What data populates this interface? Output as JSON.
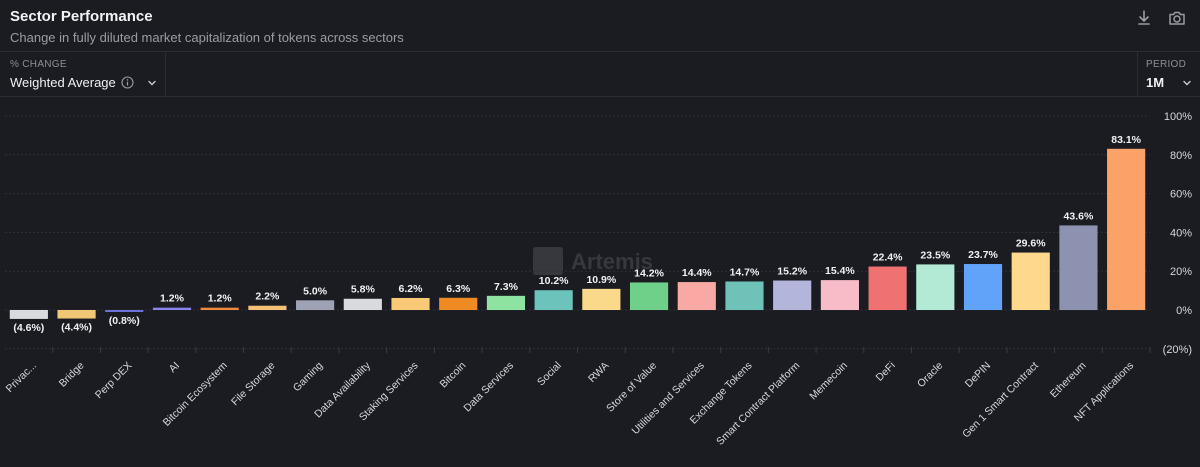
{
  "header": {
    "title": "Sector Performance",
    "subtitle": "Change in fully diluted market capitalization of tokens across sectors",
    "icons": [
      "download-icon",
      "camera-icon"
    ]
  },
  "controls": {
    "change_label": "% CHANGE",
    "change_value": "Weighted Average",
    "period_label": "PERIOD",
    "period_value": "1M"
  },
  "watermark": "Artemis",
  "colors": {
    "background": "#1b1c22",
    "grid": "#2c2d34",
    "text": "#e6e7ea"
  },
  "chart_data": {
    "type": "bar",
    "title": "",
    "xlabel": "",
    "ylabel": "",
    "ylim": [
      -20,
      100
    ],
    "y_ticks": [
      100,
      80,
      60,
      40,
      20,
      0,
      -20
    ],
    "y_tick_labels": [
      "100%",
      "80%",
      "60%",
      "40%",
      "20%",
      "0%",
      "(20%)"
    ],
    "categories": [
      "Privac...",
      "Bridge",
      "Perp DEX",
      "AI",
      "Bitcoin Ecosystem",
      "File Storage",
      "Gaming",
      "Data Availability",
      "Staking Services",
      "Bitcoin",
      "Data Services",
      "Social",
      "RWA",
      "Store of Value",
      "Utilities and Services",
      "Exchange Tokens",
      "Smart Contract Platform",
      "Memecoin",
      "DeFi",
      "Oracle",
      "DePIN",
      "Gen 1 Smart Contract",
      "Ethereum",
      "NFT Applications"
    ],
    "values": [
      -4.6,
      -4.4,
      -0.8,
      1.2,
      1.2,
      2.2,
      5.0,
      5.8,
      6.2,
      6.3,
      7.3,
      10.2,
      10.9,
      14.2,
      14.4,
      14.7,
      15.2,
      15.4,
      22.4,
      23.5,
      23.7,
      29.6,
      43.6,
      83.1
    ],
    "value_labels": [
      "(4.6%)",
      "(4.4%)",
      "(0.8%)",
      "1.2%",
      "1.2%",
      "2.2%",
      "5.0%",
      "5.8%",
      "6.2%",
      "6.3%",
      "7.3%",
      "10.2%",
      "10.9%",
      "14.2%",
      "14.4%",
      "14.7%",
      "15.2%",
      "15.4%",
      "22.4%",
      "23.5%",
      "23.7%",
      "29.6%",
      "43.6%",
      "83.1%"
    ],
    "colors": [
      "#d9dadd",
      "#f1c776",
      "#6b72d9",
      "#8a84ee",
      "#f08a3c",
      "#f5c074",
      "#9ea2b4",
      "#d9dadd",
      "#f9c978",
      "#f08a22",
      "#8ee3a0",
      "#6cc3bb",
      "#fbd98b",
      "#6fd08a",
      "#f9a9a3",
      "#6ec2b8",
      "#b3b5db",
      "#f7bcc8",
      "#ef7271",
      "#b2ead6",
      "#60a3f9",
      "#fed98d",
      "#8c92b0",
      "#fba268"
    ],
    "grid": true
  }
}
